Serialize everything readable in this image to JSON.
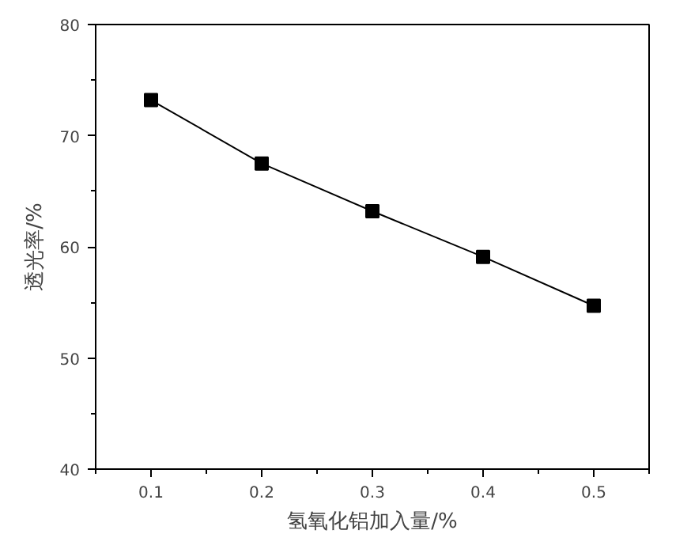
{
  "chart_data": {
    "type": "line",
    "xlabel": "氢氧化铝加入量/%",
    "ylabel": "透光率/%",
    "x": [
      0.1,
      0.2,
      0.3,
      0.4,
      0.5
    ],
    "series": [
      {
        "color": "#000000",
        "values": [
          73.2,
          67.5,
          63.2,
          59.1,
          54.7
        ]
      }
    ],
    "xlim": [
      0.05,
      0.55
    ],
    "xticks": [
      0.1,
      0.2,
      0.3,
      0.4,
      0.5
    ],
    "ylim": [
      40,
      80
    ],
    "yticks": [
      40,
      50,
      60,
      70,
      80
    ],
    "marker": "square",
    "line_style": "solid",
    "grid": false
  }
}
